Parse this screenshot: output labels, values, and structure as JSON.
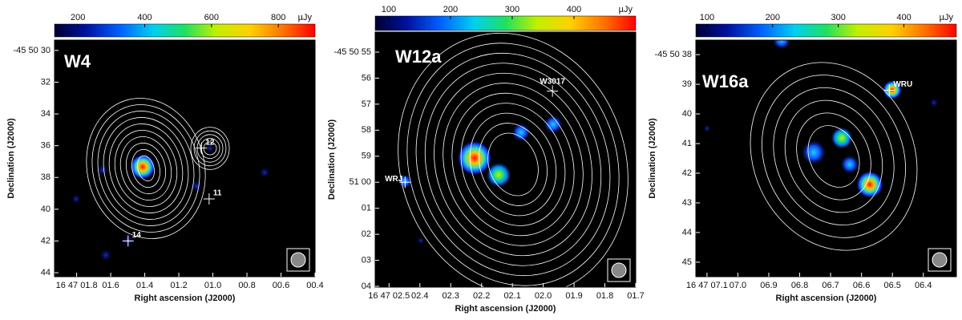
{
  "chart_data": [
    {
      "type": "heatmap",
      "title": "W4",
      "colorbar": {
        "label": "µJy",
        "lim": [
          130,
          910
        ],
        "ticks": [
          200,
          400,
          600,
          800
        ]
      },
      "xlabel": "Right ascension (J2000)",
      "ylabel": "Declination (J2000)",
      "xlim": [
        1.93,
        0.4
      ],
      "xticks": [
        {
          "value": 1.8,
          "label": "16 47 01.8"
        },
        {
          "value": 1.6,
          "label": "01.6"
        },
        {
          "value": 1.4,
          "label": "01.4"
        },
        {
          "value": 1.2,
          "label": "01.2"
        },
        {
          "value": 1.0,
          "label": "01.0"
        },
        {
          "value": 0.8,
          "label": "00.8"
        },
        {
          "value": 0.6,
          "label": "00.6"
        },
        {
          "value": 0.4,
          "label": "00.4"
        }
      ],
      "ylim": [
        44.25,
        29.35
      ],
      "yticks": [
        {
          "value": 30,
          "label": "-45 50 30"
        },
        32,
        34,
        36,
        38,
        40,
        42,
        44
      ],
      "sources": [
        {
          "label": "12",
          "x": 1.067,
          "y": 36.15
        },
        {
          "label": "11",
          "x": 1.022,
          "y": 39.35
        },
        {
          "label": "14",
          "x": 1.498,
          "y": 42.0
        }
      ]
    },
    {
      "type": "heatmap",
      "title": "W12a",
      "colorbar": {
        "label": "µJy",
        "lim": [
          78,
          500
        ],
        "ticks": [
          100,
          200,
          300,
          400
        ]
      },
      "xlabel": "Right ascension (J2000)",
      "ylabel": "Declination (J2000)",
      "xlim": [
        2.545,
        1.7
      ],
      "xticks": [
        {
          "value": 2.5,
          "label": "16 47 02.5"
        },
        {
          "value": 2.4,
          "label": "02.4"
        },
        {
          "value": 2.3,
          "label": "02.3"
        },
        {
          "value": 2.2,
          "label": "02.2"
        },
        {
          "value": 2.1,
          "label": "02.1"
        },
        {
          "value": 2.0,
          "label": "02.0"
        },
        {
          "value": 1.9,
          "label": "01.9"
        },
        {
          "value": 1.8,
          "label": "01.8"
        },
        {
          "value": 1.7,
          "label": "01.7"
        }
      ],
      "ylim": [
        64.03,
        54.23
      ],
      "yticks": [
        {
          "value": 55,
          "label": "-45 50 55"
        },
        56,
        57,
        58,
        59,
        {
          "value": 60,
          "label": "51 00"
        },
        {
          "value": 61,
          "label": "01"
        },
        {
          "value": 62,
          "label": "02"
        },
        {
          "value": 63,
          "label": "03"
        },
        {
          "value": 64,
          "label": "04"
        }
      ],
      "sources": [
        {
          "label": "WRJ",
          "x": 2.448,
          "y": 60.0
        },
        {
          "label": "W3017",
          "x": 1.97,
          "y": 56.5
        }
      ]
    },
    {
      "type": "heatmap",
      "title": "W16a",
      "colorbar": {
        "label": "µJy",
        "lim": [
          83,
          480
        ],
        "ticks": [
          100,
          200,
          300,
          400
        ]
      },
      "xlabel": "Right ascension (J2000)",
      "ylabel": "Declination (J2000)",
      "xlim": [
        7.136,
        6.293
      ],
      "xticks": [
        {
          "value": 7.1,
          "label": "16 47 07.1"
        },
        {
          "value": 7.0,
          "label": "07.0"
        },
        {
          "value": 6.9,
          "label": "06.9"
        },
        {
          "value": 6.8,
          "label": "06.8"
        },
        {
          "value": 6.7,
          "label": "06.7"
        },
        {
          "value": 6.6,
          "label": "06.6"
        },
        {
          "value": 6.5,
          "label": "06.5"
        },
        {
          "value": 6.4,
          "label": "06.4"
        }
      ],
      "ylim": [
        45.49,
        37.51
      ],
      "yticks": [
        {
          "value": 38,
          "label": "-45 50 38"
        },
        39,
        40,
        41,
        42,
        43,
        44,
        45
      ],
      "sources": [
        {
          "label": "WRU",
          "x": 6.51,
          "y": 39.2
        }
      ]
    }
  ]
}
